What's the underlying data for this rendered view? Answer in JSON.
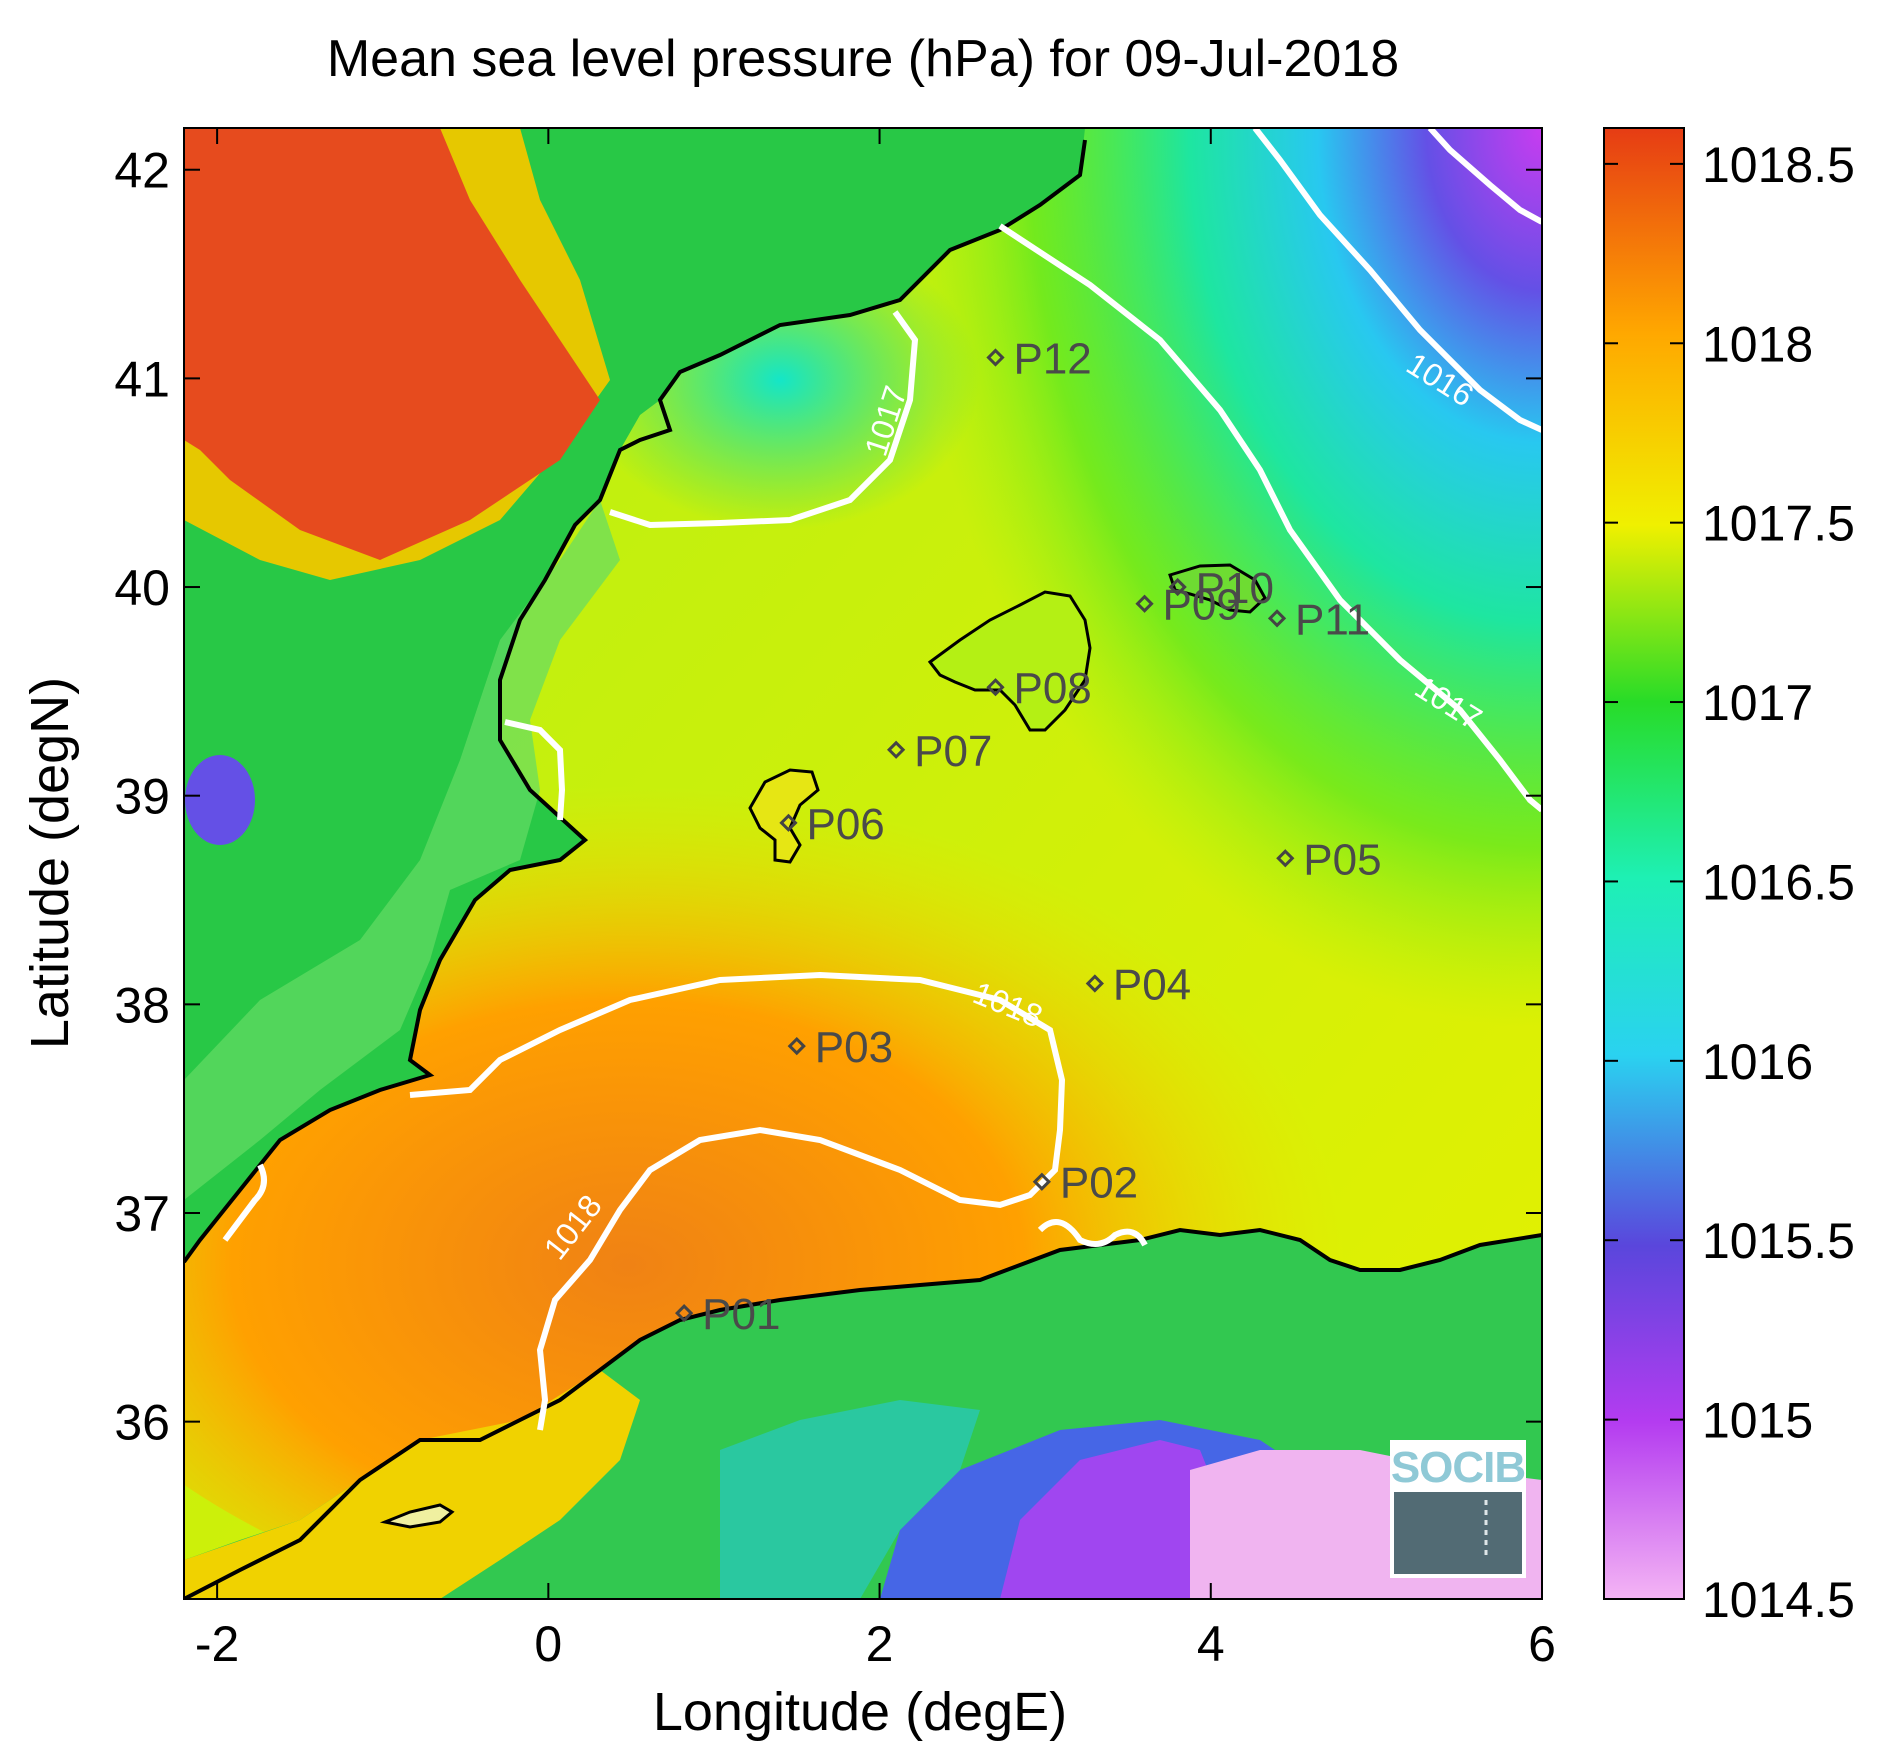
{
  "title": "Mean sea level pressure (hPa) for 09-Jul-2018",
  "xlabel": "Longitude (degE)",
  "ylabel": "Latitude (degN)",
  "xlim": [
    -2.2,
    6.0
  ],
  "ylim": [
    35.15,
    42.2
  ],
  "xticks": [
    -2,
    0,
    2,
    4,
    6
  ],
  "xtick_labels": [
    "-2",
    "0",
    "2",
    "4",
    "6"
  ],
  "yticks": [
    36,
    37,
    38,
    39,
    40,
    41,
    42
  ],
  "ytick_labels": [
    "36",
    "37",
    "38",
    "39",
    "40",
    "41",
    "42"
  ],
  "colorbar": {
    "min": 1014.5,
    "max": 1018.6,
    "ticks": [
      1014.5,
      1015,
      1015.5,
      1016,
      1016.5,
      1017,
      1017.5,
      1018,
      1018.5
    ],
    "tick_labels": [
      "1014.5",
      "1015",
      "1015.5",
      "1016",
      "1016.5",
      "1017",
      "1017.5",
      "1018",
      "1018.5"
    ],
    "colors": [
      "#f4b4f4",
      "#b43cf0",
      "#5a46dc",
      "#2ad2f0",
      "#1ef0b4",
      "#28dc28",
      "#f0f000",
      "#ffa800",
      "#e63c14"
    ]
  },
  "stations": [
    {
      "id": "P01",
      "lon": 0.82,
      "lat": 36.52
    },
    {
      "id": "P02",
      "lon": 2.98,
      "lat": 37.15
    },
    {
      "id": "P03",
      "lon": 1.5,
      "lat": 37.8
    },
    {
      "id": "P04",
      "lon": 3.3,
      "lat": 38.1
    },
    {
      "id": "P05",
      "lon": 4.45,
      "lat": 38.7
    },
    {
      "id": "P06",
      "lon": 1.45,
      "lat": 38.87
    },
    {
      "id": "P07",
      "lon": 2.1,
      "lat": 39.22
    },
    {
      "id": "P08",
      "lon": 2.7,
      "lat": 39.52
    },
    {
      "id": "P09",
      "lon": 3.6,
      "lat": 39.92
    },
    {
      "id": "P10",
      "lon": 3.8,
      "lat": 40.0
    },
    {
      "id": "P11",
      "lon": 4.4,
      "lat": 39.85
    },
    {
      "id": "P12",
      "lon": 2.7,
      "lat": 41.1
    }
  ],
  "contour_labels": [
    {
      "text": "1017",
      "lon": 2.1,
      "lat": 40.78,
      "angle": -72
    },
    {
      "text": "1016",
      "lon": 5.35,
      "lat": 40.95,
      "angle": 32
    },
    {
      "text": "1017",
      "lon": 5.4,
      "lat": 39.4,
      "angle": 32
    },
    {
      "text": "1018",
      "lon": 2.75,
      "lat": 37.95,
      "angle": 22
    },
    {
      "text": "1018",
      "lon": 0.2,
      "lat": 36.9,
      "angle": -52
    }
  ],
  "logo": "SOCIB"
}
